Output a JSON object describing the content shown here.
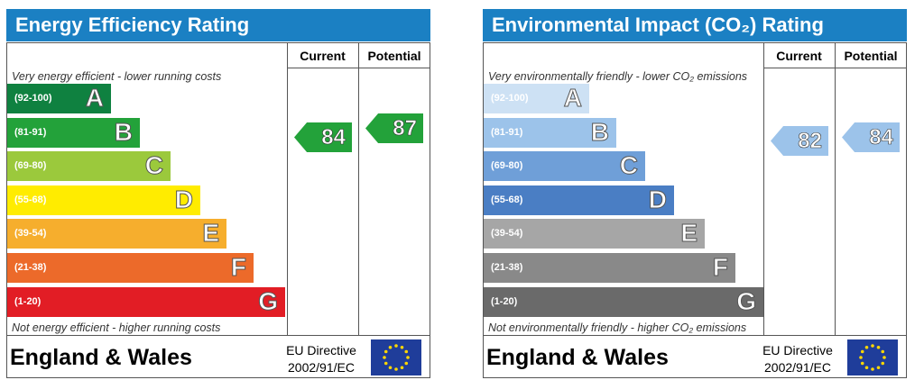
{
  "panels": [
    {
      "title": "Energy Efficiency Rating",
      "column_headers": [
        "Current",
        "Potential"
      ],
      "top_note": "Very energy efficient - lower running costs",
      "bands": [
        {
          "range": "(92-100)",
          "letter": "A",
          "color": "#0f8140"
        },
        {
          "range": "(81-91)",
          "letter": "B",
          "color": "#23a23a"
        },
        {
          "range": "(69-80)",
          "letter": "C",
          "color": "#9bc93c"
        },
        {
          "range": "(55-68)",
          "letter": "D",
          "color": "#ffec00"
        },
        {
          "range": "(39-54)",
          "letter": "E",
          "color": "#f6ae2d"
        },
        {
          "range": "(21-38)",
          "letter": "F",
          "color": "#ec6a2a"
        },
        {
          "range": "(1-20)",
          "letter": "G",
          "color": "#e21d25"
        }
      ],
      "bottom_note": "Not energy efficient - higher running costs",
      "current": 84,
      "current_color": "#23a23a",
      "potential": 87,
      "potential_color": "#23a23a",
      "region": "England & Wales",
      "directive": [
        "EU Directive",
        "2002/91/EC"
      ]
    },
    {
      "title": "Environmental Impact (CO₂) Rating",
      "column_headers": [
        "Current",
        "Potential"
      ],
      "top_note": "Very environmentally friendly - lower CO₂ emissions",
      "bands": [
        {
          "range": "(92-100)",
          "letter": "A",
          "color": "#cde1f4"
        },
        {
          "range": "(81-91)",
          "letter": "B",
          "color": "#9cc3ea"
        },
        {
          "range": "(69-80)",
          "letter": "C",
          "color": "#6f9fd8"
        },
        {
          "range": "(55-68)",
          "letter": "D",
          "color": "#4a7ec4"
        },
        {
          "range": "(39-54)",
          "letter": "E",
          "color": "#a6a6a6"
        },
        {
          "range": "(21-38)",
          "letter": "F",
          "color": "#898989"
        },
        {
          "range": "(1-20)",
          "letter": "G",
          "color": "#6a6a6a"
        }
      ],
      "bottom_note": "Not environmentally friendly - higher CO₂ emissions",
      "current": 82,
      "current_color": "#9cc3ea",
      "potential": 84,
      "potential_color": "#9cc3ea",
      "region": "England & Wales",
      "directive": [
        "EU Directive",
        "2002/91/EC"
      ]
    }
  ]
}
